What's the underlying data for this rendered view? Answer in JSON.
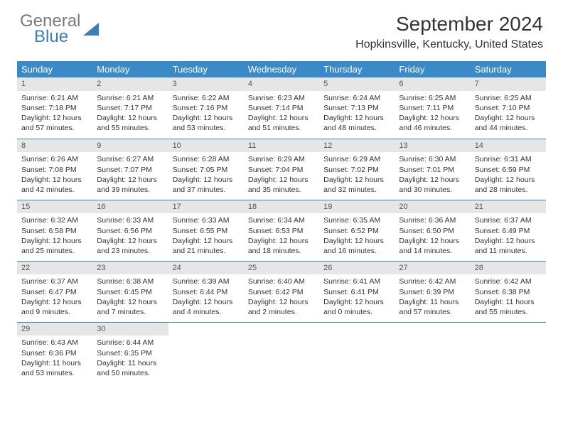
{
  "logo": {
    "word1": "General",
    "word2": "Blue"
  },
  "title": "September 2024",
  "location": "Hopkinsville, Kentucky, United States",
  "colors": {
    "header_bg": "#3a8ac8",
    "header_fg": "#ffffff",
    "daynum_bg": "#e6e6e6",
    "row_border": "#3a8ac8",
    "logo_gray": "#7a7a7a",
    "logo_blue": "#3a7fb9"
  },
  "typography": {
    "title_fontsize": 28,
    "location_fontsize": 16,
    "dayheader_fontsize": 13,
    "body_fontsize": 10.5
  },
  "day_headers": [
    "Sunday",
    "Monday",
    "Tuesday",
    "Wednesday",
    "Thursday",
    "Friday",
    "Saturday"
  ],
  "weeks": [
    [
      {
        "n": "1",
        "sr": "Sunrise: 6:21 AM",
        "ss": "Sunset: 7:18 PM",
        "d1": "Daylight: 12 hours",
        "d2": "and 57 minutes."
      },
      {
        "n": "2",
        "sr": "Sunrise: 6:21 AM",
        "ss": "Sunset: 7:17 PM",
        "d1": "Daylight: 12 hours",
        "d2": "and 55 minutes."
      },
      {
        "n": "3",
        "sr": "Sunrise: 6:22 AM",
        "ss": "Sunset: 7:16 PM",
        "d1": "Daylight: 12 hours",
        "d2": "and 53 minutes."
      },
      {
        "n": "4",
        "sr": "Sunrise: 6:23 AM",
        "ss": "Sunset: 7:14 PM",
        "d1": "Daylight: 12 hours",
        "d2": "and 51 minutes."
      },
      {
        "n": "5",
        "sr": "Sunrise: 6:24 AM",
        "ss": "Sunset: 7:13 PM",
        "d1": "Daylight: 12 hours",
        "d2": "and 48 minutes."
      },
      {
        "n": "6",
        "sr": "Sunrise: 6:25 AM",
        "ss": "Sunset: 7:11 PM",
        "d1": "Daylight: 12 hours",
        "d2": "and 46 minutes."
      },
      {
        "n": "7",
        "sr": "Sunrise: 6:25 AM",
        "ss": "Sunset: 7:10 PM",
        "d1": "Daylight: 12 hours",
        "d2": "and 44 minutes."
      }
    ],
    [
      {
        "n": "8",
        "sr": "Sunrise: 6:26 AM",
        "ss": "Sunset: 7:08 PM",
        "d1": "Daylight: 12 hours",
        "d2": "and 42 minutes."
      },
      {
        "n": "9",
        "sr": "Sunrise: 6:27 AM",
        "ss": "Sunset: 7:07 PM",
        "d1": "Daylight: 12 hours",
        "d2": "and 39 minutes."
      },
      {
        "n": "10",
        "sr": "Sunrise: 6:28 AM",
        "ss": "Sunset: 7:05 PM",
        "d1": "Daylight: 12 hours",
        "d2": "and 37 minutes."
      },
      {
        "n": "11",
        "sr": "Sunrise: 6:29 AM",
        "ss": "Sunset: 7:04 PM",
        "d1": "Daylight: 12 hours",
        "d2": "and 35 minutes."
      },
      {
        "n": "12",
        "sr": "Sunrise: 6:29 AM",
        "ss": "Sunset: 7:02 PM",
        "d1": "Daylight: 12 hours",
        "d2": "and 32 minutes."
      },
      {
        "n": "13",
        "sr": "Sunrise: 6:30 AM",
        "ss": "Sunset: 7:01 PM",
        "d1": "Daylight: 12 hours",
        "d2": "and 30 minutes."
      },
      {
        "n": "14",
        "sr": "Sunrise: 6:31 AM",
        "ss": "Sunset: 6:59 PM",
        "d1": "Daylight: 12 hours",
        "d2": "and 28 minutes."
      }
    ],
    [
      {
        "n": "15",
        "sr": "Sunrise: 6:32 AM",
        "ss": "Sunset: 6:58 PM",
        "d1": "Daylight: 12 hours",
        "d2": "and 25 minutes."
      },
      {
        "n": "16",
        "sr": "Sunrise: 6:33 AM",
        "ss": "Sunset: 6:56 PM",
        "d1": "Daylight: 12 hours",
        "d2": "and 23 minutes."
      },
      {
        "n": "17",
        "sr": "Sunrise: 6:33 AM",
        "ss": "Sunset: 6:55 PM",
        "d1": "Daylight: 12 hours",
        "d2": "and 21 minutes."
      },
      {
        "n": "18",
        "sr": "Sunrise: 6:34 AM",
        "ss": "Sunset: 6:53 PM",
        "d1": "Daylight: 12 hours",
        "d2": "and 18 minutes."
      },
      {
        "n": "19",
        "sr": "Sunrise: 6:35 AM",
        "ss": "Sunset: 6:52 PM",
        "d1": "Daylight: 12 hours",
        "d2": "and 16 minutes."
      },
      {
        "n": "20",
        "sr": "Sunrise: 6:36 AM",
        "ss": "Sunset: 6:50 PM",
        "d1": "Daylight: 12 hours",
        "d2": "and 14 minutes."
      },
      {
        "n": "21",
        "sr": "Sunrise: 6:37 AM",
        "ss": "Sunset: 6:49 PM",
        "d1": "Daylight: 12 hours",
        "d2": "and 11 minutes."
      }
    ],
    [
      {
        "n": "22",
        "sr": "Sunrise: 6:37 AM",
        "ss": "Sunset: 6:47 PM",
        "d1": "Daylight: 12 hours",
        "d2": "and 9 minutes."
      },
      {
        "n": "23",
        "sr": "Sunrise: 6:38 AM",
        "ss": "Sunset: 6:45 PM",
        "d1": "Daylight: 12 hours",
        "d2": "and 7 minutes."
      },
      {
        "n": "24",
        "sr": "Sunrise: 6:39 AM",
        "ss": "Sunset: 6:44 PM",
        "d1": "Daylight: 12 hours",
        "d2": "and 4 minutes."
      },
      {
        "n": "25",
        "sr": "Sunrise: 6:40 AM",
        "ss": "Sunset: 6:42 PM",
        "d1": "Daylight: 12 hours",
        "d2": "and 2 minutes."
      },
      {
        "n": "26",
        "sr": "Sunrise: 6:41 AM",
        "ss": "Sunset: 6:41 PM",
        "d1": "Daylight: 12 hours",
        "d2": "and 0 minutes."
      },
      {
        "n": "27",
        "sr": "Sunrise: 6:42 AM",
        "ss": "Sunset: 6:39 PM",
        "d1": "Daylight: 11 hours",
        "d2": "and 57 minutes."
      },
      {
        "n": "28",
        "sr": "Sunrise: 6:42 AM",
        "ss": "Sunset: 6:38 PM",
        "d1": "Daylight: 11 hours",
        "d2": "and 55 minutes."
      }
    ],
    [
      {
        "n": "29",
        "sr": "Sunrise: 6:43 AM",
        "ss": "Sunset: 6:36 PM",
        "d1": "Daylight: 11 hours",
        "d2": "and 53 minutes."
      },
      {
        "n": "30",
        "sr": "Sunrise: 6:44 AM",
        "ss": "Sunset: 6:35 PM",
        "d1": "Daylight: 11 hours",
        "d2": "and 50 minutes."
      },
      null,
      null,
      null,
      null,
      null
    ]
  ]
}
